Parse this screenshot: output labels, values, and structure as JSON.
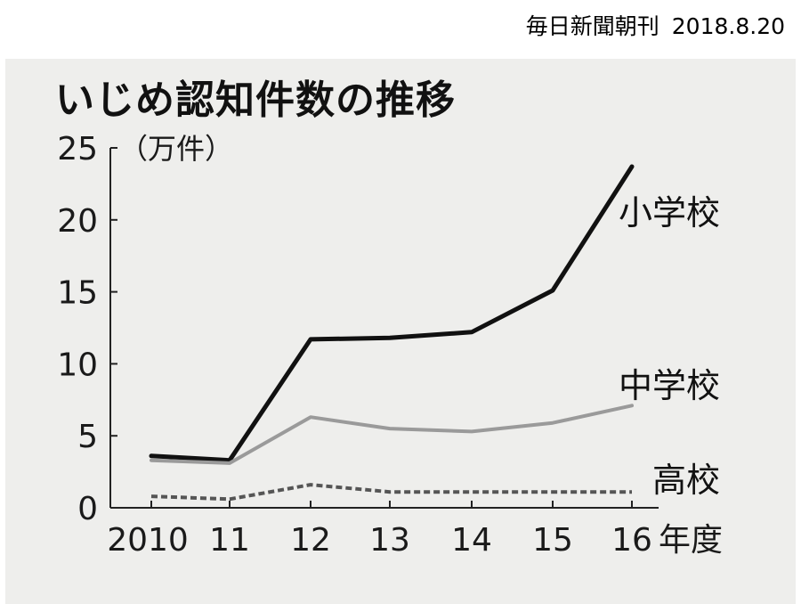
{
  "source": {
    "newspaper": "毎日新聞朝刊",
    "date": "2018.8.20"
  },
  "chart_data": {
    "type": "line",
    "title": "いじめ認知件数の推移",
    "ylabel": "（万件）",
    "xlabel": "年度",
    "ylim": [
      0,
      25
    ],
    "yticks": [
      "0",
      "5",
      "10",
      "15",
      "20",
      "25"
    ],
    "x": [
      2010,
      2011,
      2012,
      2013,
      2014,
      2015,
      2016
    ],
    "xtick_labels": [
      "2010",
      "11",
      "12",
      "13",
      "14",
      "15",
      "16"
    ],
    "grid": false,
    "series": [
      {
        "name": "小学校",
        "values": [
          3.6,
          3.3,
          11.7,
          11.8,
          12.2,
          15.1,
          23.7
        ],
        "color": "#111111",
        "style": "solid"
      },
      {
        "name": "中学校",
        "values": [
          3.3,
          3.1,
          6.3,
          5.5,
          5.3,
          5.9,
          7.1
        ],
        "color": "#9a9a9a",
        "style": "solid"
      },
      {
        "name": "高校",
        "values": [
          0.8,
          0.6,
          1.6,
          1.1,
          1.1,
          1.1,
          1.1
        ],
        "color": "#555555",
        "style": "dashed"
      }
    ]
  }
}
